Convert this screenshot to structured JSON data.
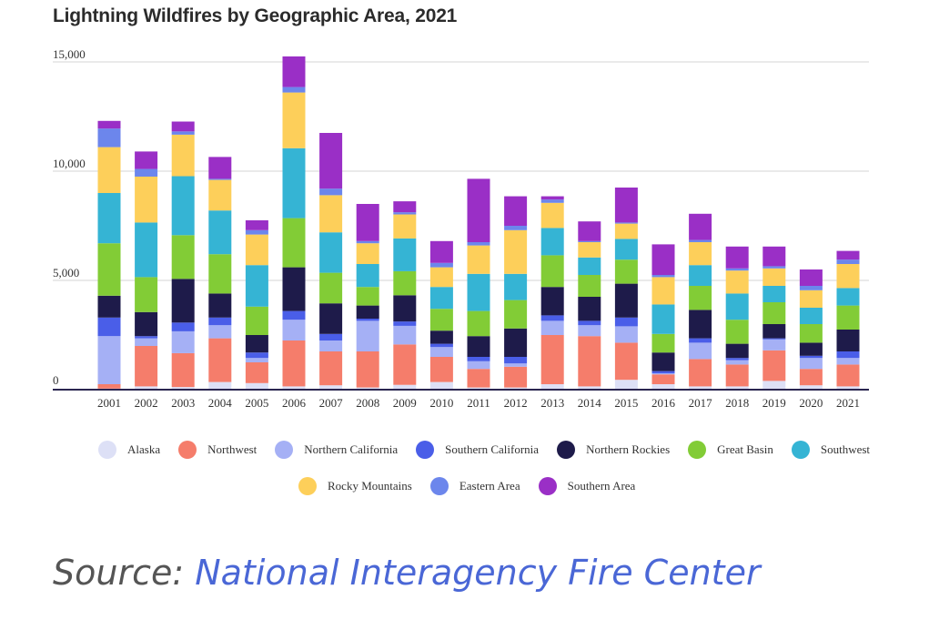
{
  "chart_data": {
    "type": "bar",
    "stacked": true,
    "title": "Lightning Wildfires by Geographic Area, 2021",
    "ylim": [
      0,
      15000
    ],
    "yticks": [
      {
        "value": 0,
        "label": "0"
      },
      {
        "value": 5000,
        "label": "5,000"
      },
      {
        "value": 10000,
        "label": "10,000"
      },
      {
        "value": 15000,
        "label": "15,000"
      }
    ],
    "grid": true,
    "legend_position": "bottom",
    "categories": [
      "2001",
      "2002",
      "2003",
      "2004",
      "2005",
      "2006",
      "2007",
      "2008",
      "2009",
      "2010",
      "2011",
      "2012",
      "2013",
      "2014",
      "2015",
      "2016",
      "2017",
      "2018",
      "2019",
      "2020",
      "2021"
    ],
    "series": [
      {
        "name": "Alaska",
        "color": "#dde0f6",
        "values": [
          50,
          150,
          120,
          350,
          300,
          150,
          200,
          100,
          220,
          350,
          100,
          100,
          250,
          150,
          450,
          250,
          150,
          150,
          400,
          200,
          150
        ]
      },
      {
        "name": "Northwest",
        "color": "#f57d6b",
        "values": [
          200,
          1850,
          1550,
          2000,
          950,
          2100,
          1550,
          1650,
          1850,
          1150,
          850,
          950,
          2250,
          2300,
          1700,
          450,
          1250,
          1000,
          1400,
          750,
          1000
        ]
      },
      {
        "name": "Northern California",
        "color": "#a5b0f5",
        "values": [
          2200,
          350,
          1000,
          600,
          200,
          950,
          500,
          1400,
          850,
          450,
          350,
          150,
          650,
          500,
          750,
          50,
          750,
          200,
          500,
          500,
          300
        ]
      },
      {
        "name": "Southern California",
        "color": "#4a5ee8",
        "values": [
          850,
          100,
          400,
          350,
          250,
          400,
          300,
          100,
          200,
          150,
          200,
          300,
          250,
          200,
          400,
          100,
          200,
          100,
          50,
          100,
          300
        ]
      },
      {
        "name": "Northern Rockies",
        "color": "#1e1b4a",
        "values": [
          1000,
          1100,
          2000,
          1100,
          800,
          2000,
          1400,
          600,
          1200,
          600,
          950,
          1300,
          1300,
          1100,
          1550,
          850,
          1300,
          650,
          650,
          600,
          1000
        ]
      },
      {
        "name": "Great Basin",
        "color": "#82cc36",
        "values": [
          2400,
          1600,
          2000,
          1800,
          1300,
          2250,
          1400,
          850,
          1100,
          1000,
          1150,
          1300,
          1450,
          1000,
          1100,
          850,
          1100,
          1100,
          1000,
          850,
          1100
        ]
      },
      {
        "name": "Southwest",
        "color": "#35b4d4",
        "values": [
          2300,
          2500,
          2700,
          2000,
          1900,
          3200,
          1850,
          1050,
          1500,
          1000,
          1700,
          1200,
          1250,
          800,
          950,
          1350,
          950,
          1200,
          750,
          750,
          800
        ]
      },
      {
        "name": "Rocky Mountains",
        "color": "#fdcf5a",
        "values": [
          2100,
          2100,
          1900,
          1400,
          1400,
          2550,
          1700,
          950,
          1100,
          900,
          1300,
          2000,
          1150,
          700,
          700,
          1250,
          1050,
          1050,
          800,
          800,
          1100
        ]
      },
      {
        "name": "Eastern Area",
        "color": "#6c86ec",
        "values": [
          850,
          350,
          150,
          50,
          200,
          250,
          300,
          100,
          100,
          200,
          150,
          200,
          150,
          50,
          50,
          100,
          100,
          100,
          100,
          200,
          200
        ]
      },
      {
        "name": "Southern Area",
        "color": "#9a2fc6",
        "values": [
          350,
          800,
          450,
          1000,
          450,
          1400,
          2550,
          1700,
          500,
          1000,
          2900,
          1350,
          150,
          900,
          1600,
          1400,
          1200,
          1000,
          900,
          750,
          400
        ]
      }
    ]
  },
  "source": {
    "prefix": "Source: ",
    "link": "National Interagency Fire Center"
  }
}
